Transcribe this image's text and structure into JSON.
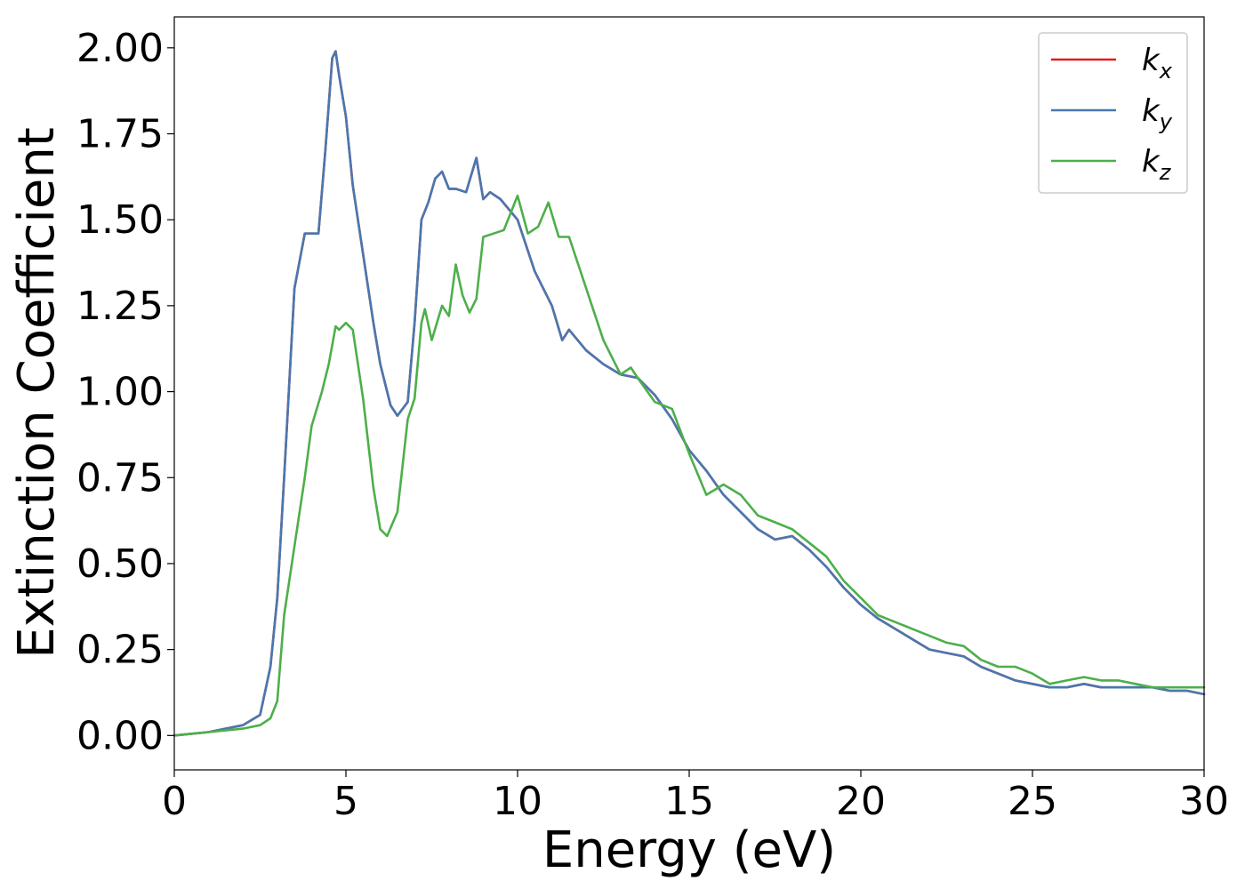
{
  "chart_data": {
    "type": "line",
    "title": "",
    "xlabel": "Energy (eV)",
    "ylabel": "Extinction Coefficient",
    "xlim": [
      0,
      30
    ],
    "ylim": [
      -0.1,
      2.09
    ],
    "xticks": [
      0,
      5,
      10,
      15,
      20,
      25,
      30
    ],
    "yticks": [
      0.0,
      0.25,
      0.5,
      0.75,
      1.0,
      1.25,
      1.5,
      1.75,
      2.0
    ],
    "grid": false,
    "legend_position": "top-right",
    "series": [
      {
        "name": "k",
        "subscript": "x",
        "color": "#e41a1c",
        "x": [
          0,
          1,
          2,
          2.5,
          2.8,
          3.0,
          3.2,
          3.5,
          3.8,
          4.0,
          4.2,
          4.4,
          4.6,
          4.7,
          4.8,
          5.0,
          5.2,
          5.5,
          5.8,
          6.0,
          6.3,
          6.5,
          6.8,
          7.0,
          7.2,
          7.4,
          7.6,
          7.8,
          8.0,
          8.2,
          8.5,
          8.8,
          9.0,
          9.2,
          9.5,
          10.0,
          10.5,
          11.0,
          11.3,
          11.5,
          12.0,
          12.5,
          13.0,
          13.5,
          14.0,
          14.5,
          15.0,
          15.5,
          16.0,
          16.5,
          17.0,
          17.5,
          18.0,
          18.5,
          19.0,
          19.5,
          20.0,
          20.5,
          21.0,
          21.5,
          22.0,
          22.5,
          23.0,
          23.5,
          24.0,
          24.5,
          25.0,
          25.5,
          26.0,
          26.5,
          27.0,
          27.5,
          28.0,
          28.5,
          29.0,
          29.5,
          30.0
        ],
        "y": [
          0.0,
          0.01,
          0.03,
          0.06,
          0.2,
          0.4,
          0.75,
          1.3,
          1.46,
          1.46,
          1.46,
          1.7,
          1.97,
          1.99,
          1.92,
          1.8,
          1.6,
          1.4,
          1.2,
          1.08,
          0.96,
          0.93,
          0.97,
          1.2,
          1.5,
          1.55,
          1.62,
          1.64,
          1.59,
          1.59,
          1.58,
          1.68,
          1.56,
          1.58,
          1.56,
          1.5,
          1.35,
          1.25,
          1.15,
          1.18,
          1.12,
          1.08,
          1.05,
          1.04,
          0.99,
          0.92,
          0.83,
          0.77,
          0.7,
          0.65,
          0.6,
          0.57,
          0.58,
          0.54,
          0.49,
          0.43,
          0.38,
          0.34,
          0.31,
          0.28,
          0.25,
          0.24,
          0.23,
          0.2,
          0.18,
          0.16,
          0.15,
          0.14,
          0.14,
          0.15,
          0.14,
          0.14,
          0.14,
          0.14,
          0.13,
          0.13,
          0.12
        ]
      },
      {
        "name": "k",
        "subscript": "y",
        "color": "#4878b0",
        "x": [
          0,
          1,
          2,
          2.5,
          2.8,
          3.0,
          3.2,
          3.5,
          3.8,
          4.0,
          4.2,
          4.4,
          4.6,
          4.7,
          4.8,
          5.0,
          5.2,
          5.5,
          5.8,
          6.0,
          6.3,
          6.5,
          6.8,
          7.0,
          7.2,
          7.4,
          7.6,
          7.8,
          8.0,
          8.2,
          8.5,
          8.8,
          9.0,
          9.2,
          9.5,
          10.0,
          10.5,
          11.0,
          11.3,
          11.5,
          12.0,
          12.5,
          13.0,
          13.5,
          14.0,
          14.5,
          15.0,
          15.5,
          16.0,
          16.5,
          17.0,
          17.5,
          18.0,
          18.5,
          19.0,
          19.5,
          20.0,
          20.5,
          21.0,
          21.5,
          22.0,
          22.5,
          23.0,
          23.5,
          24.0,
          24.5,
          25.0,
          25.5,
          26.0,
          26.5,
          27.0,
          27.5,
          28.0,
          28.5,
          29.0,
          29.5,
          30.0
        ],
        "y": [
          0.0,
          0.01,
          0.03,
          0.06,
          0.2,
          0.4,
          0.75,
          1.3,
          1.46,
          1.46,
          1.46,
          1.7,
          1.97,
          1.99,
          1.92,
          1.8,
          1.6,
          1.4,
          1.2,
          1.08,
          0.96,
          0.93,
          0.97,
          1.2,
          1.5,
          1.55,
          1.62,
          1.64,
          1.59,
          1.59,
          1.58,
          1.68,
          1.56,
          1.58,
          1.56,
          1.5,
          1.35,
          1.25,
          1.15,
          1.18,
          1.12,
          1.08,
          1.05,
          1.04,
          0.99,
          0.92,
          0.83,
          0.77,
          0.7,
          0.65,
          0.6,
          0.57,
          0.58,
          0.54,
          0.49,
          0.43,
          0.38,
          0.34,
          0.31,
          0.28,
          0.25,
          0.24,
          0.23,
          0.2,
          0.18,
          0.16,
          0.15,
          0.14,
          0.14,
          0.15,
          0.14,
          0.14,
          0.14,
          0.14,
          0.13,
          0.13,
          0.12
        ]
      },
      {
        "name": "k",
        "subscript": "z",
        "color": "#4daf4a",
        "x": [
          0,
          1,
          2,
          2.5,
          2.8,
          3.0,
          3.2,
          3.5,
          3.8,
          4.0,
          4.3,
          4.5,
          4.7,
          4.8,
          5.0,
          5.2,
          5.5,
          5.8,
          6.0,
          6.2,
          6.5,
          6.8,
          7.0,
          7.2,
          7.3,
          7.5,
          7.8,
          8.0,
          8.2,
          8.4,
          8.6,
          8.8,
          9.0,
          9.3,
          9.6,
          10.0,
          10.3,
          10.6,
          10.9,
          11.2,
          11.5,
          12.0,
          12.5,
          13.0,
          13.3,
          13.5,
          14.0,
          14.5,
          15.0,
          15.5,
          16.0,
          16.5,
          17.0,
          17.5,
          18.0,
          18.5,
          19.0,
          19.5,
          20.0,
          20.5,
          21.0,
          21.5,
          22.0,
          22.5,
          23.0,
          23.5,
          24.0,
          24.5,
          25.0,
          25.5,
          26.0,
          26.5,
          27.0,
          27.5,
          28.0,
          28.5,
          29.0,
          29.5,
          30.0
        ],
        "y": [
          0.0,
          0.01,
          0.02,
          0.03,
          0.05,
          0.1,
          0.35,
          0.55,
          0.75,
          0.9,
          1.0,
          1.08,
          1.19,
          1.18,
          1.2,
          1.18,
          0.98,
          0.72,
          0.6,
          0.58,
          0.65,
          0.92,
          0.98,
          1.2,
          1.24,
          1.15,
          1.25,
          1.22,
          1.37,
          1.28,
          1.23,
          1.27,
          1.45,
          1.46,
          1.47,
          1.57,
          1.46,
          1.48,
          1.55,
          1.45,
          1.45,
          1.3,
          1.15,
          1.05,
          1.07,
          1.04,
          0.97,
          0.95,
          0.82,
          0.7,
          0.73,
          0.7,
          0.64,
          0.62,
          0.6,
          0.56,
          0.52,
          0.45,
          0.4,
          0.35,
          0.33,
          0.31,
          0.29,
          0.27,
          0.26,
          0.22,
          0.2,
          0.2,
          0.18,
          0.15,
          0.16,
          0.17,
          0.16,
          0.16,
          0.15,
          0.14,
          0.14,
          0.14,
          0.14
        ]
      }
    ]
  }
}
